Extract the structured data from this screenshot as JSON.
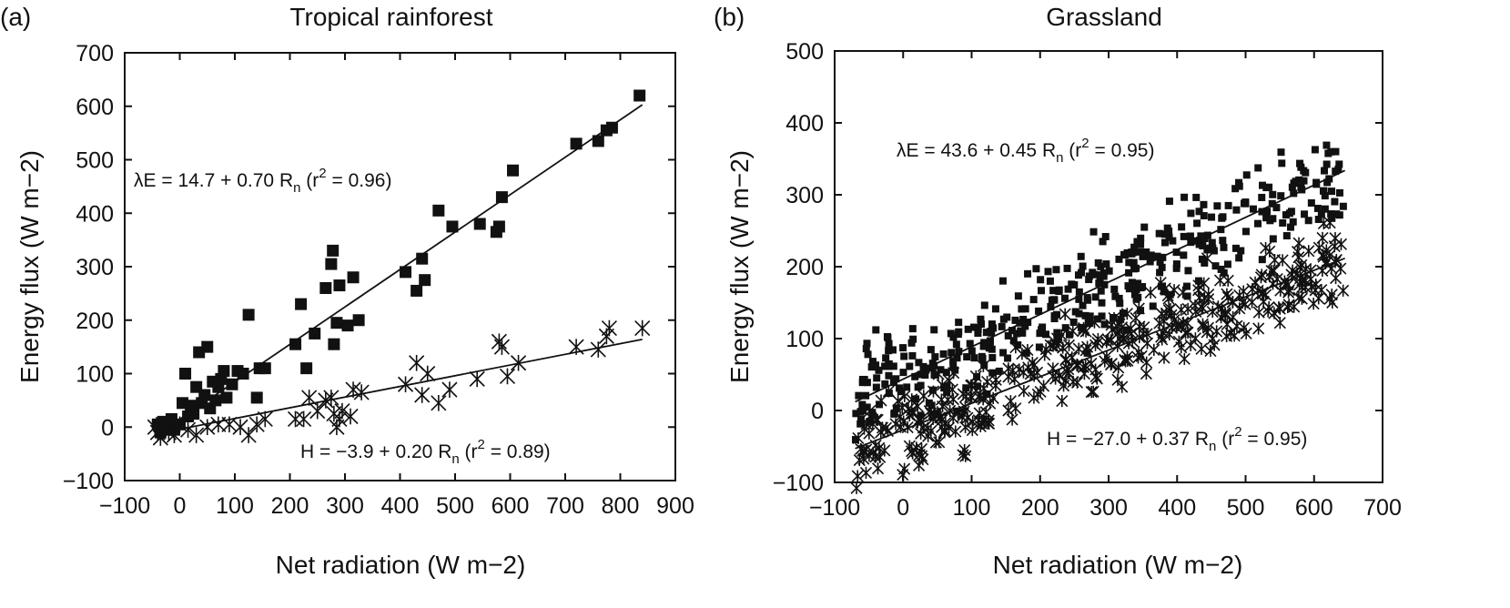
{
  "chart_data": [
    {
      "panel_label": "(a)",
      "type": "scatter",
      "title": "Tropical rainforest",
      "xlabel": "Net radiation (W m−2)",
      "ylabel": "Energy flux (W m−2)",
      "xlim": [
        -100,
        900
      ],
      "ylim": [
        -100,
        700
      ],
      "xticks": [
        "−100",
        "0",
        "100",
        "200",
        "300",
        "400",
        "500",
        "600",
        "700",
        "800",
        "900"
      ],
      "yticks": [
        "−100",
        "0",
        "100",
        "200",
        "300",
        "400",
        "500",
        "600",
        "700"
      ],
      "grid": false,
      "series": [
        {
          "marker": "square",
          "points": [
            [
              -40,
              5
            ],
            [
              -35,
              -10
            ],
            [
              -30,
              10
            ],
            [
              -25,
              -5
            ],
            [
              -20,
              0
            ],
            [
              -15,
              15
            ],
            [
              -10,
              -5
            ],
            [
              0,
              5
            ],
            [
              5,
              45
            ],
            [
              10,
              100
            ],
            [
              15,
              20
            ],
            [
              20,
              40
            ],
            [
              25,
              25
            ],
            [
              30,
              75
            ],
            [
              35,
              140
            ],
            [
              40,
              45
            ],
            [
              45,
              60
            ],
            [
              50,
              150
            ],
            [
              55,
              35
            ],
            [
              60,
              85
            ],
            [
              65,
              50
            ],
            [
              70,
              75
            ],
            [
              75,
              90
            ],
            [
              80,
              105
            ],
            [
              85,
              55
            ],
            [
              95,
              80
            ],
            [
              105,
              105
            ],
            [
              115,
              100
            ],
            [
              125,
              210
            ],
            [
              140,
              55
            ],
            [
              145,
              110
            ],
            [
              155,
              110
            ],
            [
              210,
              155
            ],
            [
              220,
              230
            ],
            [
              230,
              110
            ],
            [
              245,
              175
            ],
            [
              265,
              260
            ],
            [
              275,
              305
            ],
            [
              278,
              330
            ],
            [
              280,
              155
            ],
            [
              285,
              195
            ],
            [
              290,
              265
            ],
            [
              305,
              190
            ],
            [
              315,
              280
            ],
            [
              325,
              200
            ],
            [
              410,
              290
            ],
            [
              430,
              255
            ],
            [
              440,
              315
            ],
            [
              445,
              275
            ],
            [
              470,
              405
            ],
            [
              495,
              375
            ],
            [
              545,
              380
            ],
            [
              575,
              365
            ],
            [
              580,
              375
            ],
            [
              585,
              430
            ],
            [
              605,
              480
            ],
            [
              720,
              530
            ],
            [
              760,
              535
            ],
            [
              775,
              555
            ],
            [
              785,
              560
            ],
            [
              835,
              620
            ]
          ]
        },
        {
          "marker": "asterisk",
          "points": [
            [
              -45,
              0
            ],
            [
              -40,
              -10
            ],
            [
              -35,
              -20
            ],
            [
              -30,
              5
            ],
            [
              -20,
              -10
            ],
            [
              -10,
              -15
            ],
            [
              0,
              5
            ],
            [
              15,
              -5
            ],
            [
              30,
              -15
            ],
            [
              50,
              0
            ],
            [
              70,
              5
            ],
            [
              90,
              5
            ],
            [
              110,
              0
            ],
            [
              125,
              -15
            ],
            [
              140,
              5
            ],
            [
              155,
              15
            ],
            [
              210,
              15
            ],
            [
              225,
              15
            ],
            [
              235,
              55
            ],
            [
              250,
              30
            ],
            [
              265,
              50
            ],
            [
              275,
              55
            ],
            [
              280,
              25
            ],
            [
              285,
              0
            ],
            [
              290,
              15
            ],
            [
              295,
              30
            ],
            [
              310,
              20
            ],
            [
              315,
              70
            ],
            [
              330,
              65
            ],
            [
              410,
              80
            ],
            [
              430,
              120
            ],
            [
              440,
              60
            ],
            [
              450,
              100
            ],
            [
              470,
              45
            ],
            [
              490,
              70
            ],
            [
              540,
              90
            ],
            [
              580,
              160
            ],
            [
              585,
              150
            ],
            [
              595,
              95
            ],
            [
              615,
              120
            ],
            [
              720,
              150
            ],
            [
              760,
              145
            ],
            [
              775,
              170
            ],
            [
              780,
              185
            ],
            [
              840,
              185
            ]
          ]
        }
      ],
      "fit_lines": [
        {
          "name": "λE",
          "intercept": 14.7,
          "slope": 0.7,
          "x_range": [
            -40,
            840
          ]
        },
        {
          "name": "H",
          "intercept": -3.9,
          "slope": 0.2,
          "x_range": [
            -40,
            840
          ]
        }
      ],
      "annotations": {
        "le_prefix": "λE = 14.7 + 0.70 R",
        "le_sub": "n",
        "le_mid": " (r",
        "le_sup": "2",
        "le_suffix": " = 0.96)",
        "h_prefix": "H = −3.9 + 0.20 R",
        "h_sub": "n",
        "h_mid": " (r",
        "h_sup": "2",
        "h_suffix": " = 0.89)"
      }
    },
    {
      "panel_label": "(b)",
      "type": "scatter",
      "title": "Grassland",
      "xlabel": "Net radiation (W m−2)",
      "ylabel": "Energy flux (W m−2)",
      "xlim": [
        -100,
        700
      ],
      "ylim": [
        -100,
        500
      ],
      "xticks": [
        "−100",
        "0",
        "100",
        "200",
        "300",
        "400",
        "500",
        "600",
        "700"
      ],
      "yticks": [
        "−100",
        "0",
        "100",
        "200",
        "300",
        "400",
        "500"
      ],
      "grid": false,
      "series": [
        {
          "marker": "square",
          "intercept": 43.6,
          "slope": 0.45,
          "x_range": [
            -70,
            645
          ],
          "spread": 55,
          "count": 420
        },
        {
          "marker": "asterisk",
          "intercept": -27.0,
          "slope": 0.37,
          "x_range": [
            -70,
            645
          ],
          "spread": 45,
          "count": 420
        }
      ],
      "fit_lines": [
        {
          "name": "λE",
          "intercept": 43.6,
          "slope": 0.45,
          "x_range": [
            -70,
            645
          ]
        },
        {
          "name": "H",
          "intercept": -27.0,
          "slope": 0.37,
          "x_range": [
            -70,
            645
          ]
        }
      ],
      "annotations": {
        "le_prefix": "λE = 43.6 + 0.45 R",
        "le_sub": "n",
        "le_mid": " (r",
        "le_sup": "2",
        "le_suffix": " = 0.95)",
        "h_prefix": "H = −27.0 + 0.37 R",
        "h_sub": "n",
        "h_mid": " (r",
        "h_sup": "2",
        "h_suffix": " = 0.95)"
      }
    }
  ]
}
